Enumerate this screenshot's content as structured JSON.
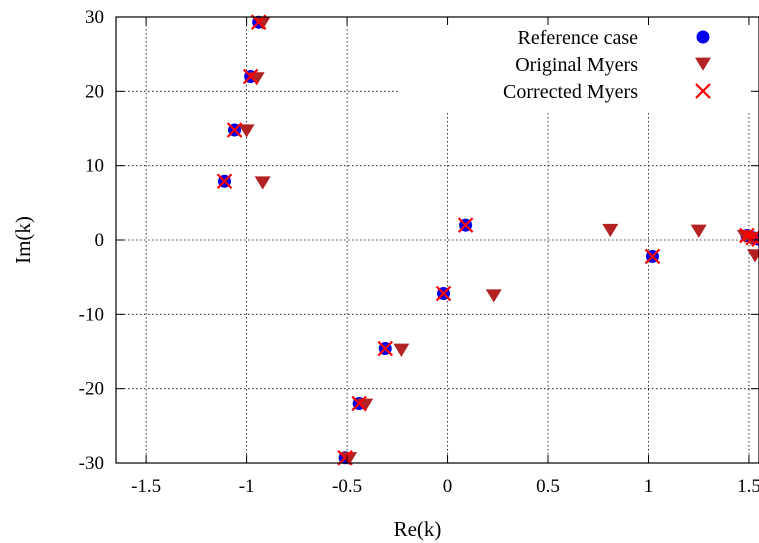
{
  "chart_data": {
    "type": "scatter",
    "xlabel": "Re(k)",
    "ylabel": "Im(k)",
    "xlim": [
      -1.65,
      1.55
    ],
    "ylim": [
      -30,
      30
    ],
    "x_ticks": [
      -1.5,
      -1,
      -0.5,
      0,
      0.5,
      1,
      1.5
    ],
    "x_tick_labels": [
      "-1.5",
      "-1",
      "-0.5",
      "0",
      "0.5",
      "1",
      "1.5"
    ],
    "y_ticks": [
      -30,
      -20,
      -10,
      0,
      10,
      20,
      30
    ],
    "y_tick_labels": [
      "-30",
      "-20",
      "-10",
      "0",
      "10",
      "20",
      "30"
    ],
    "grid": true,
    "legend_position": "top-right",
    "series": [
      {
        "name": "Reference case",
        "marker": "circle",
        "color": "#0000ee",
        "points": [
          [
            -0.94,
            29.3
          ],
          [
            -0.98,
            22.0
          ],
          [
            -1.06,
            14.8
          ],
          [
            -1.11,
            7.9
          ],
          [
            0.09,
            2.0
          ],
          [
            -0.02,
            -7.2
          ],
          [
            -0.31,
            -14.6
          ],
          [
            -0.44,
            -22.0
          ],
          [
            -0.51,
            -29.3
          ],
          [
            1.02,
            -2.2
          ],
          [
            1.49,
            0.6
          ],
          [
            1.52,
            0.3
          ],
          [
            1.55,
            0.1
          ]
        ]
      },
      {
        "name": "Original Myers",
        "marker": "triangle-down",
        "color": "#b22222",
        "points": [
          [
            -0.92,
            29.2
          ],
          [
            -0.95,
            21.7
          ],
          [
            -1.0,
            14.7
          ],
          [
            -0.92,
            7.7
          ],
          [
            0.81,
            1.3
          ],
          [
            1.25,
            1.2
          ],
          [
            0.23,
            -7.5
          ],
          [
            -0.23,
            -14.8
          ],
          [
            -0.41,
            -22.2
          ],
          [
            -0.49,
            -29.4
          ],
          [
            1.53,
            -2.1
          ],
          [
            1.48,
            0.5
          ],
          [
            1.51,
            0.2
          ]
        ]
      },
      {
        "name": "Corrected Myers",
        "marker": "x",
        "color": "#ff0000",
        "points": [
          [
            -0.94,
            29.3
          ],
          [
            -0.98,
            22.0
          ],
          [
            -1.06,
            14.8
          ],
          [
            -1.11,
            7.9
          ],
          [
            0.09,
            2.0
          ],
          [
            -0.02,
            -7.2
          ],
          [
            -0.31,
            -14.6
          ],
          [
            -0.44,
            -22.0
          ],
          [
            -0.51,
            -29.3
          ],
          [
            1.02,
            -2.2
          ],
          [
            1.49,
            0.6
          ],
          [
            1.52,
            0.3
          ],
          [
            1.55,
            0.1
          ]
        ]
      }
    ]
  }
}
